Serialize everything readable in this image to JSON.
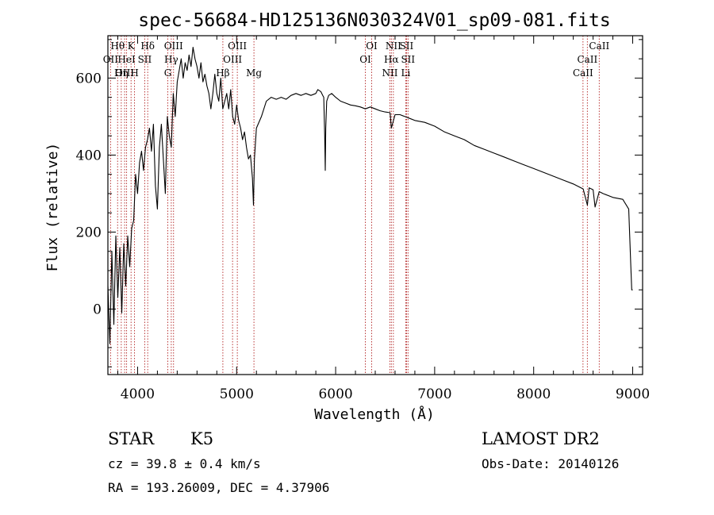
{
  "chart_data": {
    "type": "line",
    "title": "spec-56684-HD125136N030324V01_sp09-081.fits",
    "xlabel": "Wavelength (Å)",
    "ylabel": "Flux (relative)",
    "xlim": [
      3700,
      9100
    ],
    "ylim": [
      -170,
      710
    ],
    "x_ticks": [
      4000,
      5000,
      6000,
      7000,
      8000,
      9000
    ],
    "y_ticks": [
      0,
      200,
      400,
      600
    ],
    "grid": false,
    "line_color": "#000000",
    "marker_color": "#b22222",
    "series": [
      {
        "x": [
          3700,
          3720,
          3740,
          3760,
          3780,
          3800,
          3820,
          3840,
          3860,
          3880,
          3900,
          3920,
          3940,
          3960,
          3980,
          4000,
          4020,
          4040,
          4060,
          4080,
          4100,
          4120,
          4140,
          4160,
          4180,
          4200,
          4220,
          4240,
          4260,
          4280,
          4300,
          4320,
          4340,
          4360,
          4380,
          4400,
          4420,
          4440,
          4460,
          4480,
          4500,
          4520,
          4540,
          4560,
          4580,
          4600,
          4620,
          4640,
          4660,
          4680,
          4700,
          4720,
          4740,
          4760,
          4780,
          4800,
          4820,
          4840,
          4860,
          4880,
          4900,
          4920,
          4940,
          4960,
          4980,
          5000,
          5020,
          5040,
          5060,
          5080,
          5100,
          5120,
          5140,
          5160,
          5170,
          5180,
          5200,
          5250,
          5300,
          5350,
          5400,
          5450,
          5500,
          5550,
          5600,
          5650,
          5700,
          5750,
          5800,
          5820,
          5850,
          5870,
          5880,
          5890,
          5895,
          5900,
          5910,
          5930,
          5960,
          6000,
          6050,
          6100,
          6150,
          6200,
          6250,
          6300,
          6350,
          6400,
          6450,
          6500,
          6550,
          6563,
          6600,
          6650,
          6700,
          6750,
          6800,
          6900,
          7000,
          7100,
          7200,
          7300,
          7400,
          7500,
          7600,
          7700,
          7800,
          7900,
          8000,
          8100,
          8200,
          8300,
          8400,
          8500,
          8542,
          8560,
          8600,
          8620,
          8662,
          8700,
          8800,
          8900,
          8960,
          8980,
          8990,
          9000
        ],
        "y": [
          60,
          -90,
          150,
          -40,
          190,
          30,
          160,
          -10,
          170,
          60,
          190,
          110,
          210,
          230,
          350,
          300,
          380,
          410,
          360,
          420,
          440,
          470,
          410,
          480,
          320,
          260,
          420,
          480,
          390,
          300,
          500,
          450,
          420,
          560,
          500,
          590,
          620,
          650,
          600,
          640,
          620,
          660,
          630,
          680,
          650,
          630,
          600,
          640,
          590,
          610,
          580,
          560,
          520,
          560,
          610,
          560,
          540,
          600,
          520,
          540,
          560,
          520,
          570,
          500,
          480,
          530,
          490,
          470,
          440,
          460,
          420,
          390,
          400,
          340,
          270,
          390,
          470,
          500,
          540,
          550,
          545,
          550,
          545,
          555,
          560,
          555,
          560,
          555,
          560,
          570,
          565,
          555,
          550,
          450,
          360,
          470,
          540,
          555,
          560,
          550,
          540,
          535,
          530,
          528,
          525,
          520,
          525,
          520,
          515,
          512,
          510,
          470,
          505,
          505,
          500,
          495,
          490,
          485,
          475,
          460,
          450,
          440,
          425,
          415,
          405,
          395,
          385,
          375,
          365,
          355,
          345,
          335,
          325,
          312,
          270,
          315,
          310,
          265,
          305,
          300,
          290,
          285,
          260,
          120,
          50,
          50
        ]
      }
    ],
    "spectral_lines": [
      {
        "name": "Hθ",
        "x": 3798,
        "row": 0
      },
      {
        "name": "K",
        "x": 3934,
        "row": 0
      },
      {
        "name": "Hδ",
        "x": 4102,
        "row": 0
      },
      {
        "name": "OII",
        "x": 3727,
        "row": 1
      },
      {
        "name": "HeI",
        "x": 3889,
        "row": 1
      },
      {
        "name": "SII",
        "x": 4072,
        "row": 1
      },
      {
        "name": "OIII",
        "x": 3869,
        "row": 2
      },
      {
        "name": "Hη",
        "x": 3835,
        "row": 2
      },
      {
        "name": "H",
        "x": 3969,
        "row": 2
      },
      {
        "name": "OIII",
        "x": 4363,
        "row": 0
      },
      {
        "name": "Hγ",
        "x": 4340,
        "row": 1
      },
      {
        "name": "G",
        "x": 4305,
        "row": 2
      },
      {
        "name": "OIII",
        "x": 5007,
        "row": 0
      },
      {
        "name": "OIII",
        "x": 4959,
        "row": 1
      },
      {
        "name": "Hβ",
        "x": 4861,
        "row": 2
      },
      {
        "name": "Mg",
        "x": 5175,
        "row": 2
      },
      {
        "name": "OI",
        "x": 6364,
        "row": 0
      },
      {
        "name": "OI",
        "x": 6300,
        "row": 1
      },
      {
        "name": "NII",
        "x": 6583,
        "row": 0
      },
      {
        "name": "SII",
        "x": 6716,
        "row": 0
      },
      {
        "name": "Hα",
        "x": 6563,
        "row": 1
      },
      {
        "name": "SII",
        "x": 6731,
        "row": 1
      },
      {
        "name": "NII",
        "x": 6548,
        "row": 2
      },
      {
        "name": "Li",
        "x": 6708,
        "row": 2
      },
      {
        "name": "CaII",
        "x": 8662,
        "row": 0
      },
      {
        "name": "CaII",
        "x": 8542,
        "row": 1
      },
      {
        "name": "CaII",
        "x": 8498,
        "row": 2
      }
    ]
  },
  "info": {
    "class": "STAR",
    "subclass": "K5",
    "survey": "LAMOST DR2",
    "cz": "cz = 39.8 ± 0.4 km/s",
    "obs_date": "Obs-Date: 20140126",
    "radec": "RA = 193.26009, DEC =   4.37906"
  }
}
